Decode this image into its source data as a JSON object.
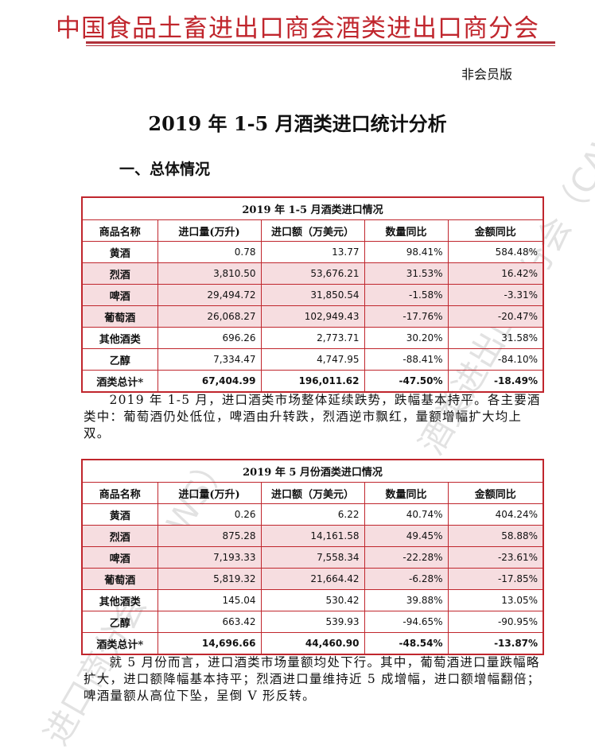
{
  "header": {
    "org_name": "中国食品土畜进出口商会酒类进出口商分会",
    "edition": "非会员版"
  },
  "doc_title": "2019 年 1-5 月酒类进口统计分析",
  "section_title": "一、总体情况",
  "watermark": {
    "text_1": "酒类进出口商分会（CAWS）",
    "text_2": "进口商分会（CAWS）"
  },
  "colors": {
    "accent": "#c0262d",
    "row_shade": "#f6dde0"
  },
  "table1": {
    "caption": "2019 年 1-5 月酒类进口情况",
    "headers": [
      "商品名称",
      "进口量(万升)",
      "进口额（万美元）",
      "数量同比",
      "金额同比"
    ],
    "rows": [
      [
        "黄酒",
        "0.78",
        "13.77",
        "98.41%",
        "584.48%"
      ],
      [
        "烈酒",
        "3,810.50",
        "53,676.21",
        "31.53%",
        "16.42%"
      ],
      [
        "啤酒",
        "29,494.72",
        "31,850.54",
        "-1.58%",
        "-3.31%"
      ],
      [
        "葡萄酒",
        "26,068.27",
        "102,949.43",
        "-17.76%",
        "-20.47%"
      ],
      [
        "其他酒类",
        "696.26",
        "2,773.71",
        "30.20%",
        "31.58%"
      ],
      [
        "乙醇",
        "7,334.47",
        "4,747.95",
        "-88.41%",
        "-84.10%"
      ],
      [
        "酒类总计*",
        "67,404.99",
        "196,011.62",
        "-47.50%",
        "-18.49%"
      ]
    ]
  },
  "paragraph1": "2019 年 1-5 月，进口酒类市场整体延续跌势，跌幅基本持平。各主要酒类中：葡萄酒仍处低位，啤酒由升转跌，烈酒逆市飘红，量额增幅扩大均上双。",
  "table2": {
    "caption": "2019 年 5 月份酒类进口情况",
    "headers": [
      "商品名称",
      "进口量(万升)",
      "进口额（万美元）",
      "数量同比",
      "金额同比"
    ],
    "rows": [
      [
        "黄酒",
        "0.26",
        "6.22",
        "40.74%",
        "404.24%"
      ],
      [
        "烈酒",
        "875.28",
        "14,161.58",
        "49.45%",
        "58.88%"
      ],
      [
        "啤酒",
        "7,193.33",
        "7,558.34",
        "-22.28%",
        "-23.61%"
      ],
      [
        "葡萄酒",
        "5,819.32",
        "21,664.42",
        "-6.28%",
        "-17.85%"
      ],
      [
        "其他酒类",
        "145.04",
        "530.42",
        "39.88%",
        "13.05%"
      ],
      [
        "乙醇",
        "663.42",
        "539.93",
        "-94.65%",
        "-90.95%"
      ],
      [
        "酒类总计*",
        "14,696.66",
        "44,460.90",
        "-48.54%",
        "-13.87%"
      ]
    ]
  },
  "paragraph2": "就 5 月份而言，进口酒类市场量额均处下行。其中，葡萄酒进口量跌幅略扩大，进口额降幅基本持平；烈酒进口量维持近 5 成增幅，进口额增幅翻倍；啤酒量额从高位下坠，呈倒 V 形反转。"
}
